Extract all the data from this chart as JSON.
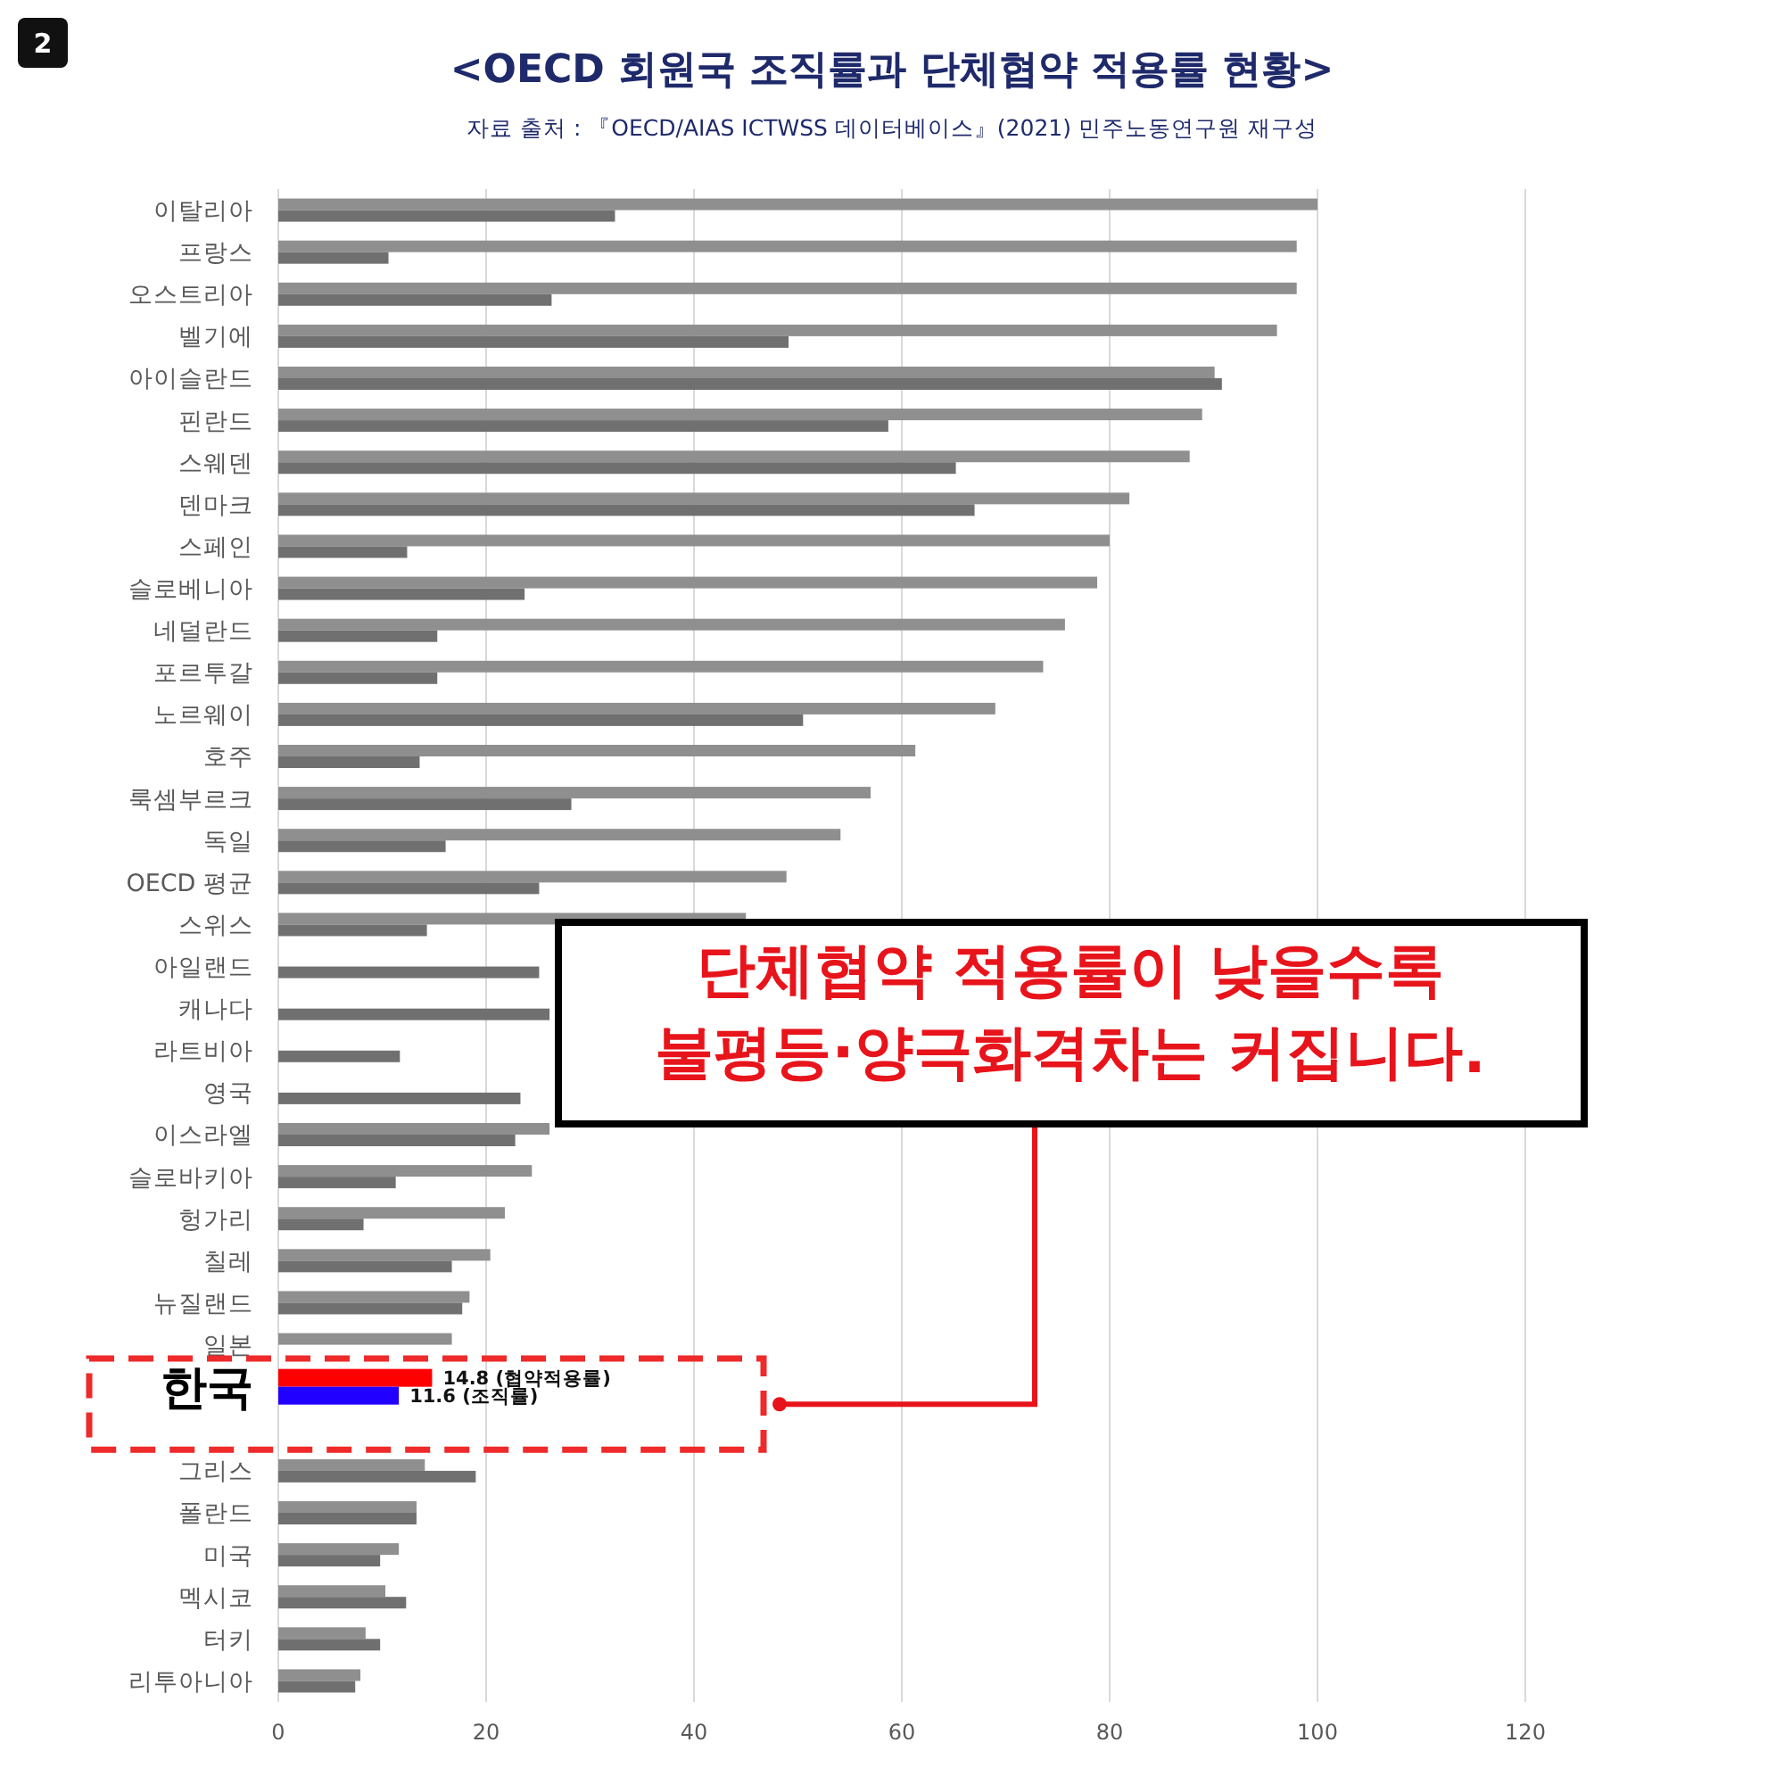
{
  "chart_data": {
    "type": "bar",
    "orientation": "horizontal",
    "title": "<OECD 회원국 조직률과 단체협약 적용률 현황>",
    "subtitle": "자료 출처 : 『OECD/AIAS ICTWSS 데이터베이스』(2021) 민주노동연구원 재구성",
    "categories": [
      "이탈리아",
      "프랑스",
      "오스트리아",
      "벨기에",
      "아이슬란드",
      "핀란드",
      "스웨덴",
      "덴마크",
      "스페인",
      "슬로베니아",
      "네덜란드",
      "포르투갈",
      "노르웨이",
      "호주",
      "룩셈부르크",
      "독일",
      "OECD 평균",
      "스위스",
      "아일랜드",
      "캐나다",
      "라트비아",
      "영국",
      "이스라엘",
      "슬로바키아",
      "헝가리",
      "칠레",
      "뉴질랜드",
      "일본",
      "한국",
      null,
      "그리스",
      "폴란드",
      "미국",
      "멕시코",
      "터키",
      "리투아니아"
    ],
    "series": [
      {
        "colors": [
          "#8f8f8f",
          "#8f8f8f",
          "#8f8f8f",
          "#8f8f8f",
          "#8f8f8f",
          "#8f8f8f",
          "#8f8f8f",
          "#8f8f8f",
          "#8f8f8f",
          "#8f8f8f",
          "#8f8f8f",
          "#8f8f8f",
          "#8f8f8f",
          "#8f8f8f",
          "#8f8f8f",
          "#8f8f8f",
          "#8f8f8f",
          "#8f8f8f",
          null,
          null,
          null,
          null,
          "#8f8f8f",
          "#8f8f8f",
          "#8f8f8f",
          "#8f8f8f",
          "#8f8f8f",
          "#8f8f8f",
          "#ff0000",
          null,
          "#8f8f8f",
          "#8f8f8f",
          "#8f8f8f",
          "#8f8f8f",
          "#8f8f8f",
          "#8f8f8f"
        ],
        "values": [
          100,
          98,
          98,
          96.1,
          90.1,
          88.9,
          87.7,
          81.9,
          80,
          78.8,
          75.7,
          73.6,
          69,
          61.3,
          57,
          54.1,
          48.9,
          45,
          null,
          null,
          null,
          null,
          26.1,
          24.4,
          21.8,
          20.4,
          18.4,
          16.7,
          14.8,
          null,
          14.1,
          13.3,
          11.6,
          10.3,
          8.4,
          7.9
        ],
        "value_labels": [
          null,
          null,
          null,
          null,
          null,
          null,
          null,
          null,
          null,
          null,
          null,
          null,
          null,
          null,
          null,
          null,
          null,
          null,
          null,
          null,
          null,
          null,
          null,
          null,
          null,
          null,
          null,
          null,
          "14.8 (협약적용률)",
          null,
          null,
          null,
          null,
          null,
          null,
          null
        ]
      },
      {
        "colors": [
          "#707070",
          "#707070",
          "#707070",
          "#707070",
          "#707070",
          "#707070",
          "#707070",
          "#707070",
          "#707070",
          "#707070",
          "#707070",
          "#707070",
          "#707070",
          "#707070",
          "#707070",
          "#707070",
          "#707070",
          "#707070",
          "#707070",
          "#707070",
          "#707070",
          "#707070",
          "#707070",
          "#707070",
          "#707070",
          "#707070",
          "#707070",
          null,
          "#2200ff",
          null,
          "#707070",
          "#707070",
          "#707070",
          "#707070",
          "#707070",
          "#707070"
        ],
        "values": [
          32.4,
          10.6,
          26.3,
          49.1,
          90.8,
          58.7,
          65.2,
          67,
          12.4,
          23.7,
          15.3,
          15.3,
          50.5,
          13.6,
          28.2,
          16.1,
          25.1,
          14.3,
          25.1,
          26.1,
          11.7,
          23.3,
          22.8,
          11.3,
          8.2,
          16.7,
          17.7,
          null,
          11.6,
          null,
          19,
          13.3,
          9.8,
          12.3,
          9.8,
          7.4
        ],
        "value_labels": [
          null,
          null,
          null,
          null,
          null,
          null,
          null,
          null,
          null,
          null,
          null,
          null,
          null,
          null,
          null,
          null,
          null,
          null,
          null,
          null,
          null,
          null,
          null,
          null,
          null,
          null,
          null,
          null,
          "11.6 (조직률)",
          null,
          null,
          null,
          null,
          null,
          null,
          null
        ]
      }
    ],
    "xlim": [
      0,
      120
    ],
    "xticks": [
      0,
      20,
      40,
      60,
      80,
      100,
      120
    ],
    "grid": "x",
    "annotations": [
      "단체협약 적용률이 낮을수록\n불평등·양극화격차는 커집니다.",
      "2"
    ]
  }
}
